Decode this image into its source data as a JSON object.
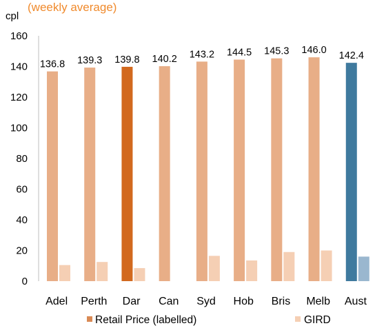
{
  "chart_data": {
    "type": "bar",
    "unit_label": "cpl",
    "title_fragment": "(weekly average)",
    "categories": [
      "Adel",
      "Perth",
      "Dar",
      "Can",
      "Syd",
      "Hob",
      "Bris",
      "Melb",
      "Aust"
    ],
    "series": [
      {
        "name": "Retail Price (labelled)",
        "values": [
          136.8,
          139.3,
          139.8,
          140.2,
          143.2,
          144.5,
          145.3,
          146.0,
          142.4
        ],
        "data_labels": [
          "136.8",
          "139.3",
          "139.8",
          "140.2",
          "143.2",
          "144.5",
          "145.3",
          "146.0",
          "142.4"
        ],
        "color": "#e8ae87",
        "highlight_colors": {
          "Dar": "#d2691e",
          "Aust": "#3f7a9e"
        }
      },
      {
        "name": "GIRD",
        "values": [
          10.5,
          12.5,
          8.5,
          null,
          16.5,
          13.5,
          19,
          20,
          16
        ],
        "color": "#f5cfb4",
        "highlight_colors": {
          "Aust": "#9ab7cf"
        }
      }
    ],
    "y_ticks": [
      0,
      20,
      40,
      60,
      80,
      100,
      120,
      140,
      160
    ],
    "ylim": [
      0,
      160
    ],
    "xlabel": "",
    "ylabel": "",
    "grid": false,
    "legend_position": "bottom",
    "legend": [
      {
        "label": "Retail Price (labelled)",
        "color": "#d98a55"
      },
      {
        "label": "GIRD",
        "color": "#f5cfb4"
      }
    ],
    "title_color": "#f08a2c"
  }
}
